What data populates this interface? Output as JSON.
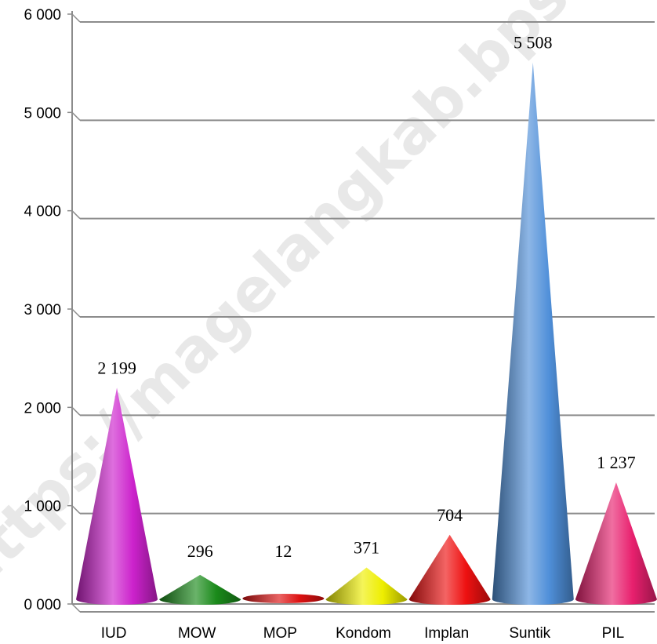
{
  "watermark": "https://magelangkab.bps.go.id",
  "chart_data": {
    "type": "bar",
    "title": "",
    "xlabel": "",
    "ylabel": "",
    "categories": [
      "IUD",
      "MOW",
      "MOP",
      "Kondom",
      "Implan",
      "Suntik",
      "PIL"
    ],
    "values": [
      2199,
      296,
      12,
      371,
      704,
      5508,
      1237
    ],
    "value_labels": [
      "2 199",
      "296",
      "12",
      "371",
      "704",
      "5 508",
      "1 237"
    ],
    "ylim": [
      0,
      6000
    ],
    "yticks": [
      0,
      1000,
      2000,
      3000,
      4000,
      5000,
      6000
    ],
    "ytick_labels": [
      "0 000",
      "1 000",
      "2 000",
      "3 000",
      "4 000",
      "5 000",
      "6 000"
    ],
    "grid": true,
    "legend": "none",
    "mark_shape": "cone",
    "colors": [
      "#cc22cc",
      "#1a8a1a",
      "#dd1111",
      "#eeee00",
      "#ee1111",
      "#4f8fd9",
      "#e8206e"
    ]
  }
}
